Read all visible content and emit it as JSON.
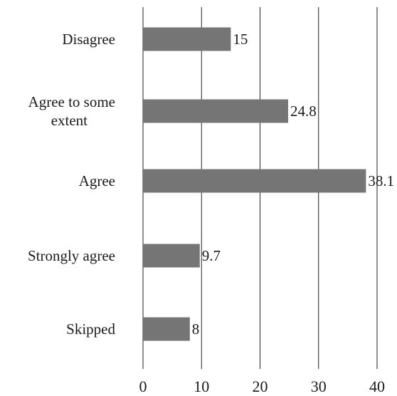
{
  "chart_data": {
    "type": "bar",
    "orientation": "horizontal",
    "categories": [
      [
        "Disagree"
      ],
      [
        "Agree to some",
        "extent"
      ],
      [
        "Agree"
      ],
      [
        "Strongly agree"
      ],
      [
        "Skipped"
      ]
    ],
    "values": [
      15,
      24.8,
      38.1,
      9.7,
      8
    ],
    "data_labels": [
      "15",
      "24.8",
      "38.1",
      "9.7",
      "8"
    ],
    "xlim": [
      0,
      40
    ],
    "xticks": [
      0,
      10,
      20,
      30,
      40
    ],
    "grid": "vertical",
    "legend": "none",
    "colors": {
      "bar": "#757575",
      "grid": "#222222",
      "text": "#1a1a1a"
    }
  }
}
